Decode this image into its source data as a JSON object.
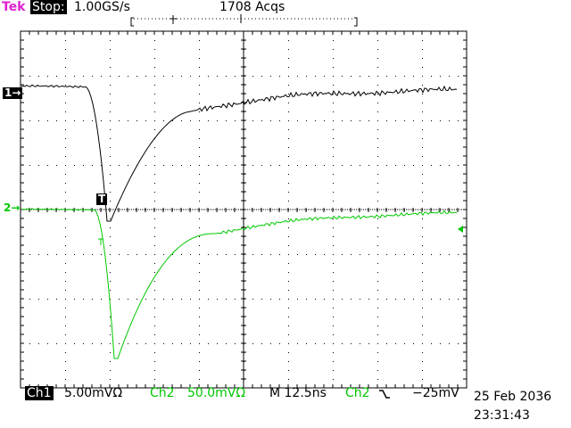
{
  "header": {
    "brand": "Tek",
    "mode": "Stop:",
    "sample_rate": "1.00GS/s",
    "acquisitions": "1708 Acqs"
  },
  "markers": {
    "ch1": "1→",
    "ch2": "2→",
    "trigger": "T"
  },
  "footer": {
    "ch1_label": "Ch1",
    "ch1_scale": "5.00mVΩ",
    "ch2_label": "Ch2",
    "ch2_scale": "50.0mVΩ",
    "timebase": "M 12.5ns",
    "trigger_source": "Ch2",
    "trigger_slope_icon": "falling-edge-icon",
    "trigger_level": "−25mV",
    "date": "25 Feb 2036",
    "time": "23:31:43"
  },
  "colors": {
    "grid": "#000000",
    "ch1": "#000000",
    "ch2": "#00c800",
    "brand": "#e020d0"
  }
}
